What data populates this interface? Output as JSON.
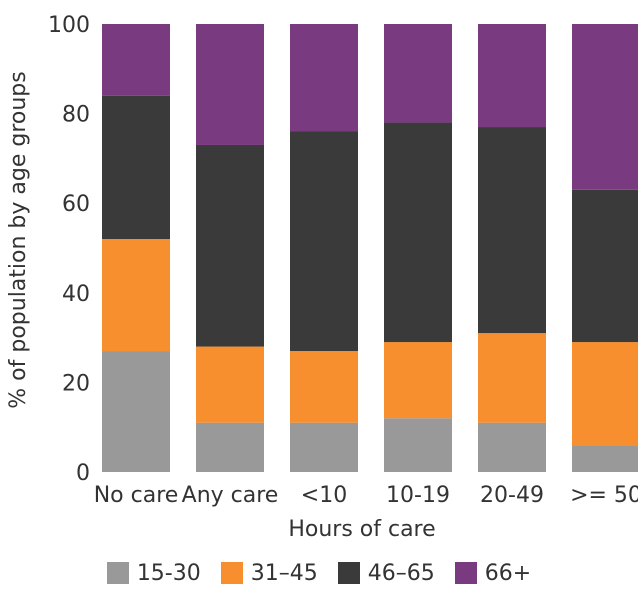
{
  "chart_data": {
    "type": "bar",
    "stacked": true,
    "xlabel": "Hours of care",
    "ylabel": "% of population by age groups",
    "ylim": [
      0,
      100
    ],
    "yticks": [
      0,
      20,
      40,
      60,
      80,
      100
    ],
    "categories": [
      "No care",
      "Any care",
      "<10",
      "10-19",
      "20-49",
      ">= 50"
    ],
    "series": [
      {
        "name": "15-30",
        "color": "#999999",
        "values": [
          27,
          11,
          11,
          12,
          11,
          6
        ]
      },
      {
        "name": "31–45",
        "color": "#f78f2e",
        "values": [
          25,
          17,
          16,
          17,
          20,
          23
        ]
      },
      {
        "name": "46–65",
        "color": "#3a3a3a",
        "values": [
          32,
          45,
          49,
          49,
          46,
          34
        ]
      },
      {
        "name": "66+",
        "color": "#7a3a80",
        "values": [
          16,
          27,
          24,
          22,
          23,
          37
        ]
      }
    ],
    "grid": false,
    "legend_position": "bottom"
  }
}
